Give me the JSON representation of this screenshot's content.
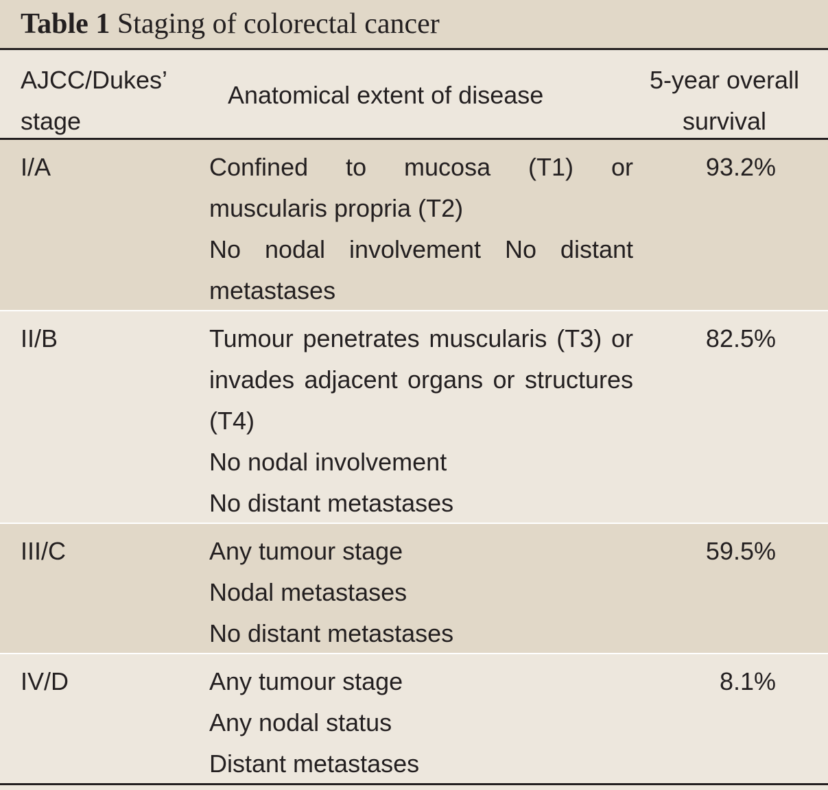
{
  "caption": {
    "number": "Table 1",
    "title": "Staging of colorectal cancer"
  },
  "header": {
    "stage_line1": "AJCC/Dukes’",
    "stage_line2": "stage",
    "extent": "Anatomical extent of disease",
    "survival_line1": "5-year overall",
    "survival_line2": "survival"
  },
  "rows": [
    {
      "stage": "I/A",
      "extent_para": "Confined to mucosa (T1) or muscularis propria (T2)",
      "extent_lines": [
        "No nodal involvement No distant metastases"
      ],
      "survival": "93.2%"
    },
    {
      "stage": "II/B",
      "extent_para": "Tumour penetrates muscularis (T3) or invades adjacent organs or structures (T4)",
      "extent_lines": [
        "No nodal involvement",
        "No distant metastases"
      ],
      "survival": "82.5%"
    },
    {
      "stage": "III/C",
      "extent_lines": [
        "Any tumour stage",
        "Nodal metastases",
        "No distant metastases"
      ],
      "survival": "59.5%"
    },
    {
      "stage": "IV/D",
      "extent_lines": [
        "Any tumour stage",
        "Any nodal status",
        "Distant metastases"
      ],
      "survival": "8.1%"
    }
  ]
}
